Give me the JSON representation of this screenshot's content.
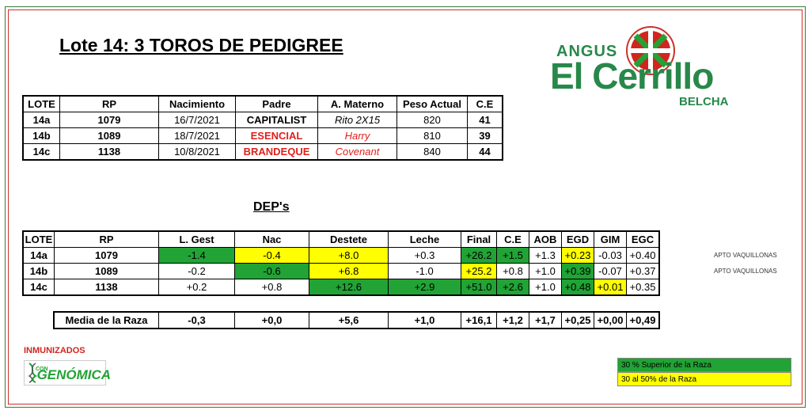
{
  "title": "Lote 14:  3 TOROS DE PEDIGREE",
  "logo": {
    "top": "ANGUS",
    "main": "El Cerrillo",
    "sub": "BELCHA"
  },
  "table1": {
    "headers": [
      "LOTE",
      "RP",
      "Nacimiento",
      "Padre",
      "A. Materno",
      "Peso Actual",
      "C.E"
    ],
    "rows": [
      {
        "lote": "14a",
        "rp": "1079",
        "nac": "16/7/2021",
        "padre": "CAPITALIST",
        "materno": "Rito 2X15",
        "peso": "820",
        "ce": "41"
      },
      {
        "lote": "14b",
        "rp": "1089",
        "nac": "18/7/2021",
        "padre": "ESENCIAL",
        "materno": "Harry",
        "peso": "810",
        "ce": "39"
      },
      {
        "lote": "14c",
        "rp": "1138",
        "nac": "10/8/2021",
        "padre": "BRANDEQUE",
        "materno": "Covenant",
        "peso": "840",
        "ce": "44"
      }
    ]
  },
  "deps_title": "DEP's",
  "table2": {
    "headers": [
      "LOTE",
      "RP",
      "L. Gest",
      "Nac",
      "Destete",
      "Leche",
      "Final",
      "C.E",
      "AOB",
      "EGD",
      "GIM",
      "EGC"
    ],
    "rows": [
      {
        "lote": "14a",
        "rp": "1079",
        "lgest": "-1.4",
        "nac": "-0.4",
        "destete": "+8.0",
        "leche": "+0.3",
        "final": "+26.2",
        "ce": "+1.5",
        "aob": "+1.3",
        "egd": "+0.23",
        "gim": "-0.03",
        "egc": "+0.40",
        "note": "APTO VAQUILLONAS"
      },
      {
        "lote": "14b",
        "rp": "1089",
        "lgest": "-0.2",
        "nac": "-0.6",
        "destete": "+6.8",
        "leche": "-1.0",
        "final": "+25.2",
        "ce": "+0.8",
        "aob": "+1.0",
        "egd": "+0.39",
        "gim": "-0.07",
        "egc": "+0.37",
        "note": "APTO VAQUILLONAS"
      },
      {
        "lote": "14c",
        "rp": "1138",
        "lgest": "+0.2",
        "nac": "+0.8",
        "destete": "+12.6",
        "leche": "+2.9",
        "final": "+51.0",
        "ce": "+2.6",
        "aob": "+1.0",
        "egd": "+0.48",
        "gim": "+0.01",
        "egc": "+0.35",
        "note": ""
      }
    ]
  },
  "media": {
    "label": "Media de la Raza",
    "values": [
      "-0,3",
      "+0,0",
      "+5,6",
      "+1,0",
      "+16,1",
      "+1,2",
      "+1,7",
      "+0,25",
      "+0,00",
      "+0,49"
    ]
  },
  "inmunizados": "INMUNIZADOS",
  "genomica": {
    "con": "CON",
    "name": "GENÓMICA"
  },
  "legend": {
    "green": "30 % Superior de la Raza",
    "yellow": "30 al 50% de la Raza"
  },
  "colors": {
    "green": "#21a335",
    "yellow": "#ffff00",
    "red": "#e0201b"
  }
}
